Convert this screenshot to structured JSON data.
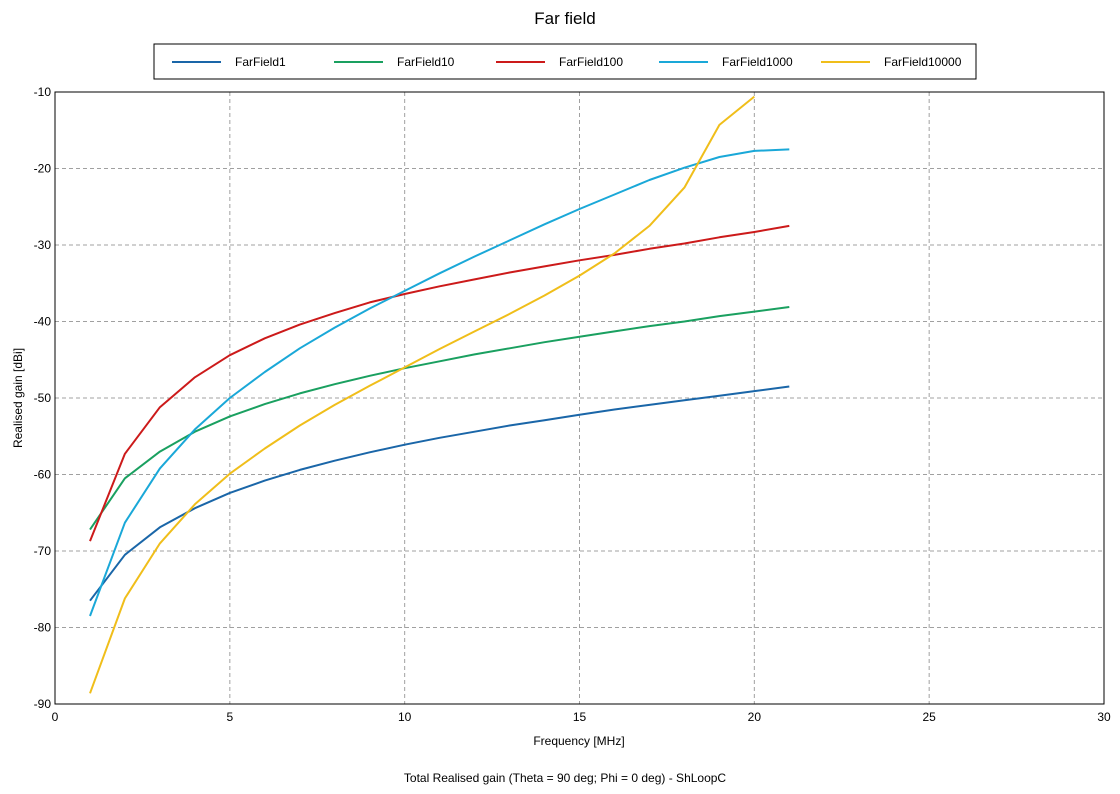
{
  "chart_data": {
    "type": "line",
    "title": "Far field",
    "xlabel": "Frequency [MHz]",
    "ylabel": "Realised gain [dBi]",
    "caption": "Total Realised gain (Theta = 90 deg; Phi = 0 deg) - ShLoopC",
    "xlim": [
      0,
      30
    ],
    "ylim": [
      -90,
      -10
    ],
    "xticks": [
      0,
      5,
      10,
      15,
      20,
      25,
      30
    ],
    "yticks": [
      -90,
      -80,
      -70,
      -60,
      -50,
      -40,
      -30,
      -20,
      -10
    ],
    "grid": true,
    "legend_position": "top",
    "series": [
      {
        "name": "FarField1",
        "color": "#1a66a8",
        "x": [
          1,
          2,
          3,
          4,
          5,
          6,
          7,
          8,
          9,
          10,
          11,
          12,
          13,
          14,
          15,
          16,
          17,
          18,
          19,
          20,
          21
        ],
        "y": [
          -76.5,
          -70.5,
          -66.9,
          -64.4,
          -62.4,
          -60.8,
          -59.4,
          -58.2,
          -57.1,
          -56.1,
          -55.2,
          -54.4,
          -53.6,
          -52.9,
          -52.2,
          -51.5,
          -50.9,
          -50.3,
          -49.7,
          -49.1,
          -48.5
        ]
      },
      {
        "name": "FarField10",
        "color": "#1aa060",
        "x": [
          1,
          2,
          3,
          4,
          5,
          6,
          7,
          8,
          9,
          10,
          11,
          12,
          13,
          14,
          15,
          16,
          17,
          18,
          19,
          20,
          21
        ],
        "y": [
          -67.2,
          -60.5,
          -57.0,
          -54.4,
          -52.4,
          -50.8,
          -49.4,
          -48.2,
          -47.1,
          -46.1,
          -45.2,
          -44.3,
          -43.5,
          -42.7,
          -42.0,
          -41.3,
          -40.6,
          -40.0,
          -39.3,
          -38.7,
          -38.1
        ]
      },
      {
        "name": "FarField100",
        "color": "#cc1a1a",
        "x": [
          1,
          2,
          3,
          4,
          5,
          6,
          7,
          8,
          9,
          10,
          11,
          12,
          13,
          14,
          15,
          16,
          17,
          18,
          19,
          20,
          21
        ],
        "y": [
          -68.7,
          -57.3,
          -51.2,
          -47.3,
          -44.4,
          -42.2,
          -40.4,
          -38.9,
          -37.5,
          -36.4,
          -35.4,
          -34.5,
          -33.6,
          -32.8,
          -32.0,
          -31.3,
          -30.5,
          -29.8,
          -29.0,
          -28.3,
          -27.5
        ]
      },
      {
        "name": "FarField1000",
        "color": "#1aa8d8",
        "x": [
          1,
          2,
          3,
          4,
          5,
          6,
          7,
          8,
          9,
          10,
          11,
          12,
          13,
          14,
          15,
          16,
          17,
          18,
          19,
          20,
          21
        ],
        "y": [
          -78.5,
          -66.3,
          -59.2,
          -54.1,
          -50.0,
          -46.6,
          -43.5,
          -40.8,
          -38.3,
          -36.0,
          -33.7,
          -31.5,
          -29.4,
          -27.3,
          -25.3,
          -23.4,
          -21.5,
          -19.9,
          -18.5,
          -17.7,
          -17.5
        ]
      },
      {
        "name": "FarField10000",
        "color": "#f0be1a",
        "x": [
          1,
          2,
          3,
          4,
          5,
          6,
          7,
          8,
          9,
          10,
          11,
          12,
          13,
          14,
          15,
          16,
          17,
          18,
          19,
          20
        ],
        "y": [
          -88.6,
          -76.2,
          -69.0,
          -63.9,
          -59.9,
          -56.6,
          -53.6,
          -50.9,
          -48.4,
          -46.0,
          -43.6,
          -41.3,
          -39.0,
          -36.6,
          -34.0,
          -31.1,
          -27.5,
          -22.5,
          -14.3,
          -10.6
        ]
      }
    ]
  }
}
